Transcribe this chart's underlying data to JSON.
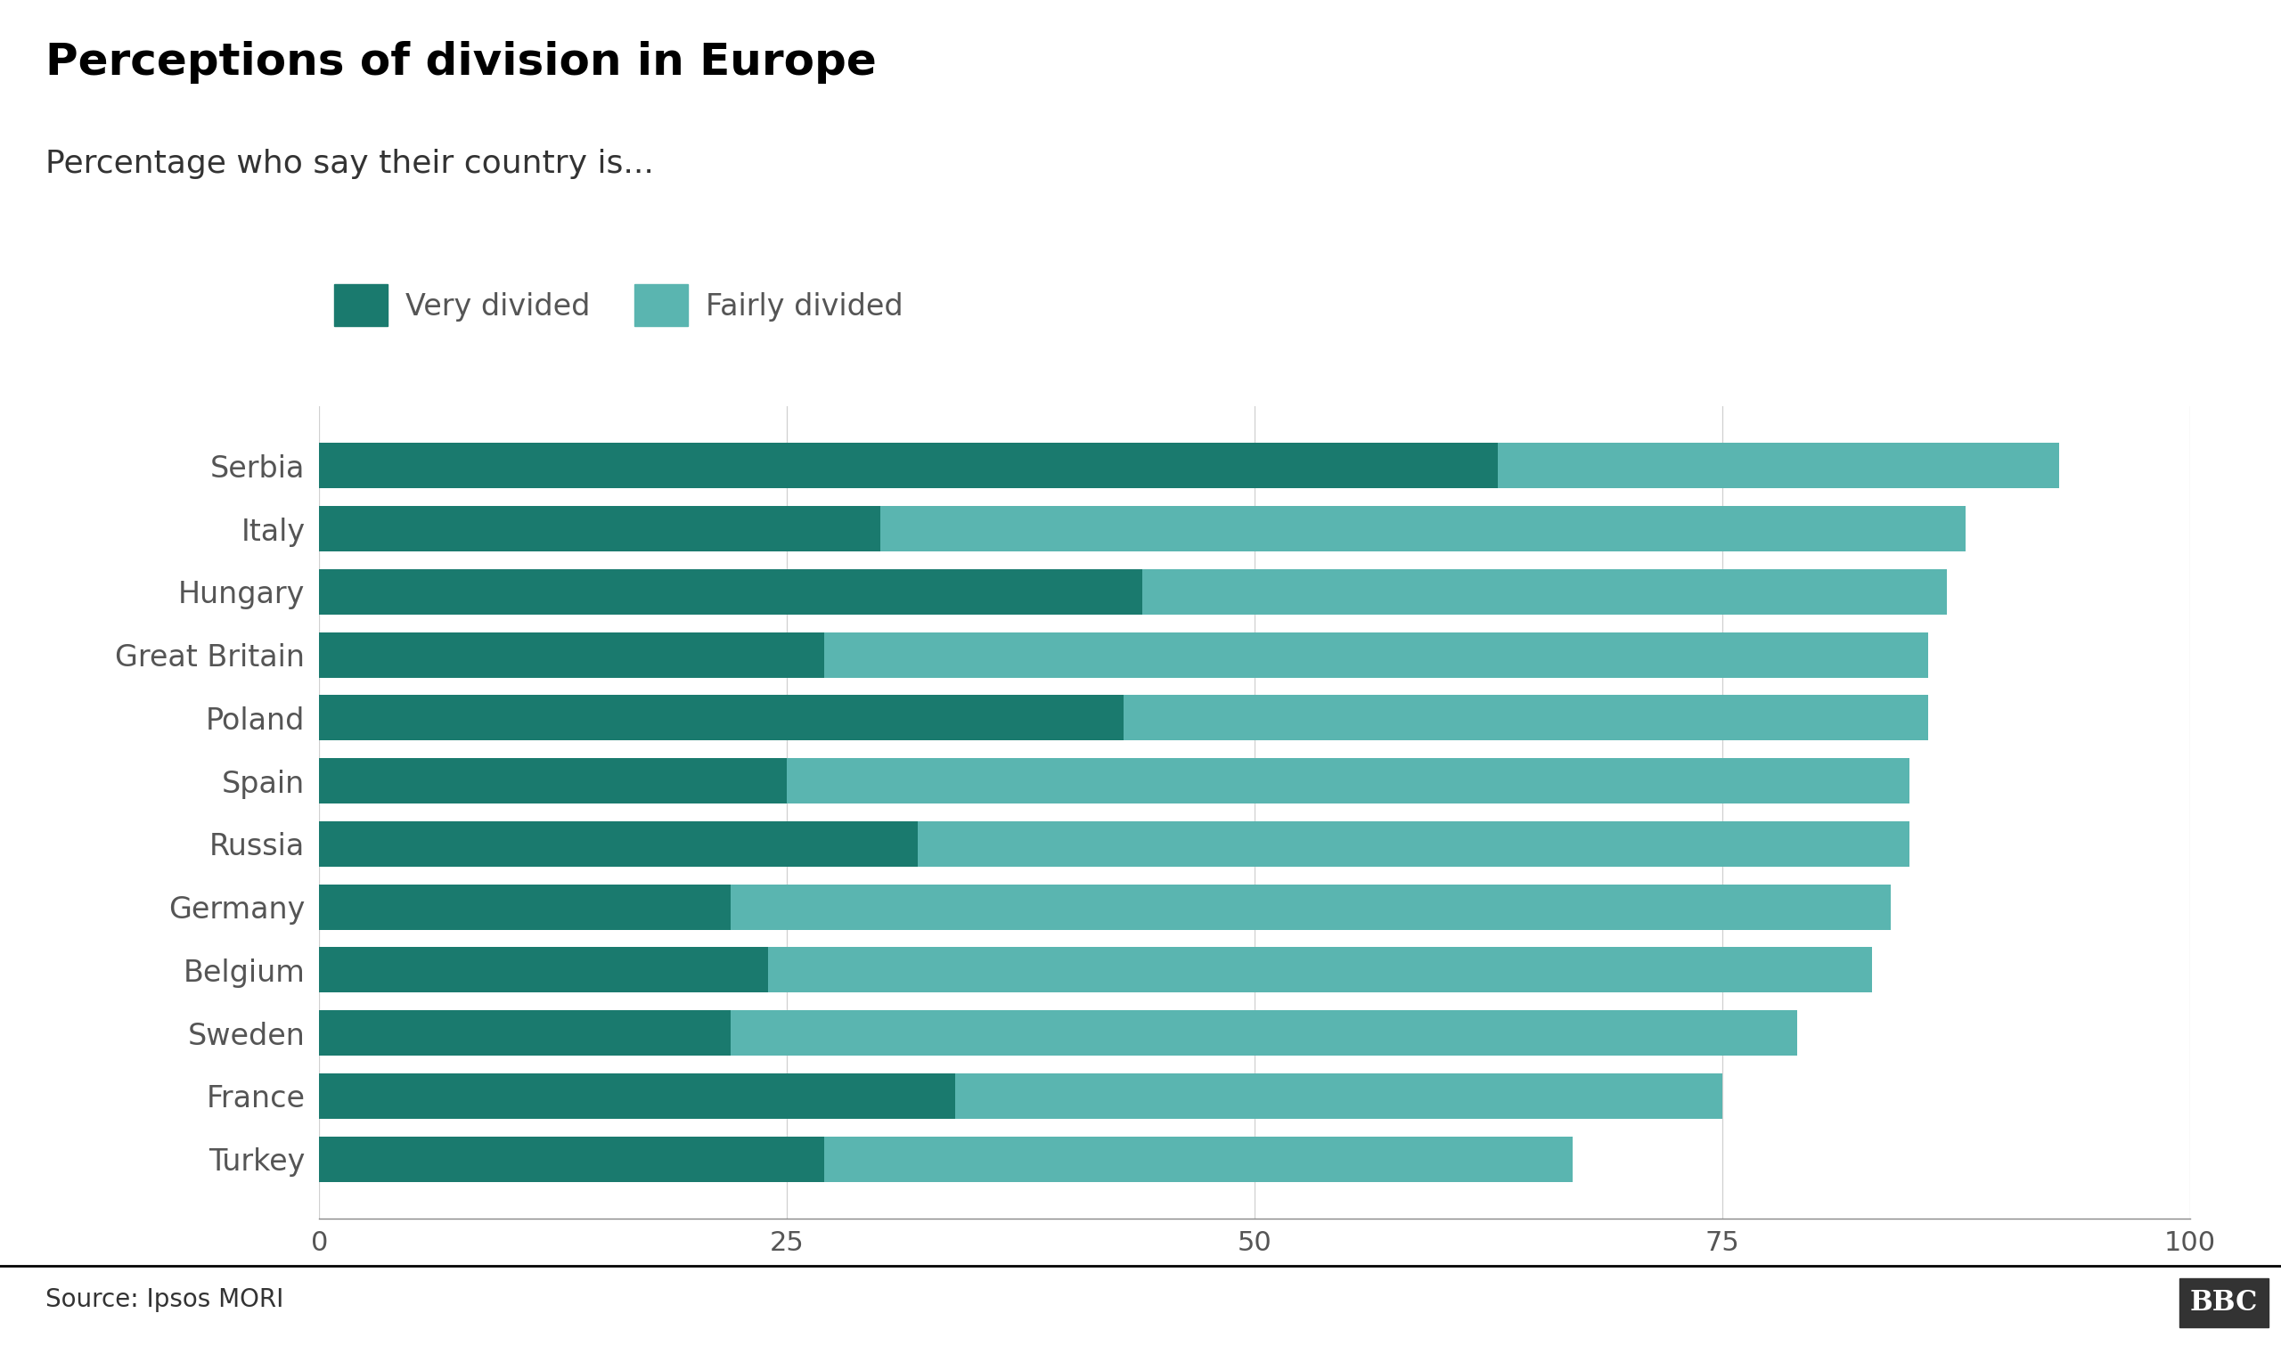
{
  "title": "Perceptions of division in Europe",
  "subtitle": "Percentage who say their country is...",
  "source": "Source: Ipsos MORI",
  "categories": [
    "Serbia",
    "Italy",
    "Hungary",
    "Great Britain",
    "Poland",
    "Spain",
    "Russia",
    "Germany",
    "Belgium",
    "Sweden",
    "France",
    "Turkey"
  ],
  "very_divided": [
    63,
    30,
    44,
    27,
    43,
    25,
    32,
    22,
    24,
    22,
    34,
    27
  ],
  "fairly_divided": [
    30,
    58,
    43,
    59,
    43,
    60,
    53,
    62,
    59,
    57,
    41,
    40
  ],
  "color_very": "#1a7a6e",
  "color_fairly": "#5ab5b0",
  "background_color": "#ffffff",
  "legend_labels": [
    "Very divided",
    "Fairly divided"
  ],
  "xlim": [
    0,
    100
  ],
  "xticks": [
    0,
    25,
    50,
    75,
    100
  ],
  "title_fontsize": 36,
  "subtitle_fontsize": 26,
  "label_fontsize": 24,
  "tick_fontsize": 22,
  "source_fontsize": 20,
  "legend_fontsize": 24
}
